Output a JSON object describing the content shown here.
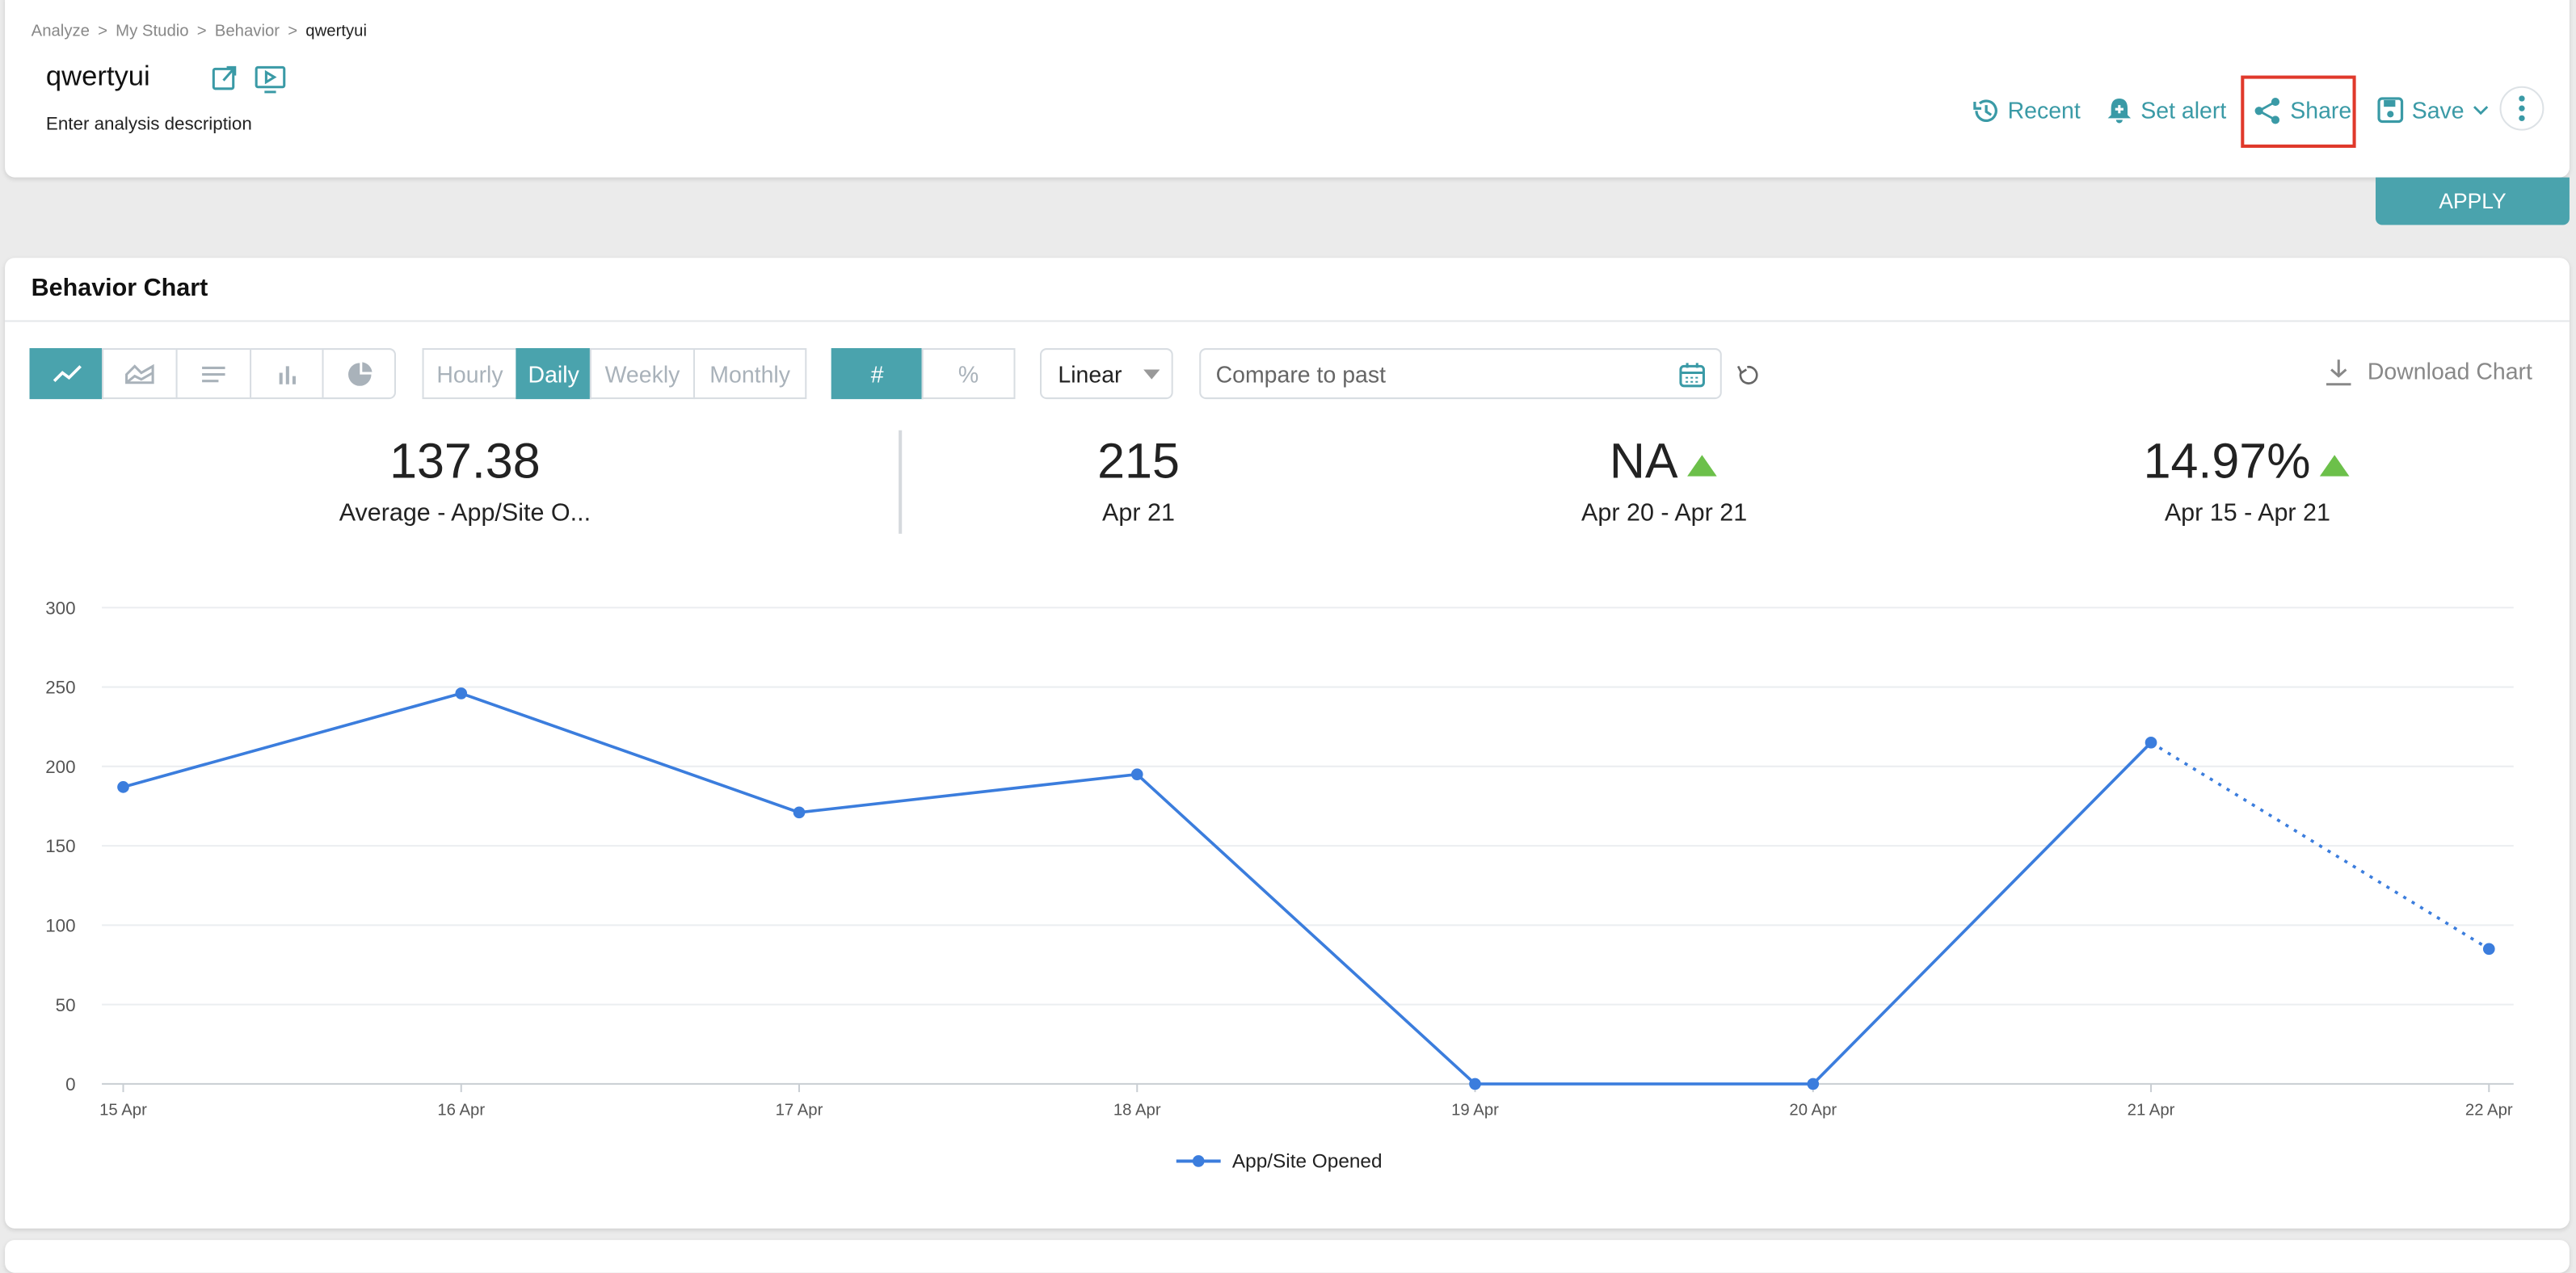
{
  "breadcrumb": {
    "items": [
      "Analyze",
      "My Studio",
      "Behavior",
      "qwertyui"
    ],
    "separator": ">"
  },
  "header": {
    "title": "qwertyui",
    "description": "Enter analysis description"
  },
  "actions": [
    "Recent",
    "Set alert",
    "Share",
    "Save"
  ],
  "apply": "APPLY",
  "card_title": "Behavior Chart",
  "granularity": {
    "options": [
      "Hourly",
      "Daily",
      "Weekly",
      "Monthly"
    ],
    "selected": "Daily"
  },
  "units": {
    "options": [
      "#",
      "%"
    ],
    "selected": "#"
  },
  "scale": "Linear",
  "compare_placeholder": "Compare to past",
  "download": "Download Chart",
  "stats": [
    {
      "value": 137.38,
      "label": "Average - App/Site O..."
    },
    {
      "value": 215,
      "label": "Apr 21"
    },
    {
      "value": "NA",
      "label": "Apr 20 - Apr 21",
      "trend": "up"
    },
    {
      "value": "14.97%",
      "label": "Apr 15 - Apr 21",
      "trend": "up"
    }
  ],
  "chart_data": {
    "type": "line",
    "categories": [
      "15 Apr",
      "16 Apr",
      "17 Apr",
      "18 Apr",
      "19 Apr",
      "20 Apr",
      "21 Apr",
      "22 Apr"
    ],
    "series": [
      {
        "name": "App/Site Opened",
        "color": "#3b7ddd",
        "values": [
          187,
          246,
          171,
          195,
          0,
          0,
          215,
          85
        ]
      }
    ],
    "ylim": [
      0,
      300
    ],
    "yticks": [
      0,
      50,
      100,
      150,
      200,
      250,
      300
    ],
    "grid": true,
    "legend": "bottom"
  }
}
